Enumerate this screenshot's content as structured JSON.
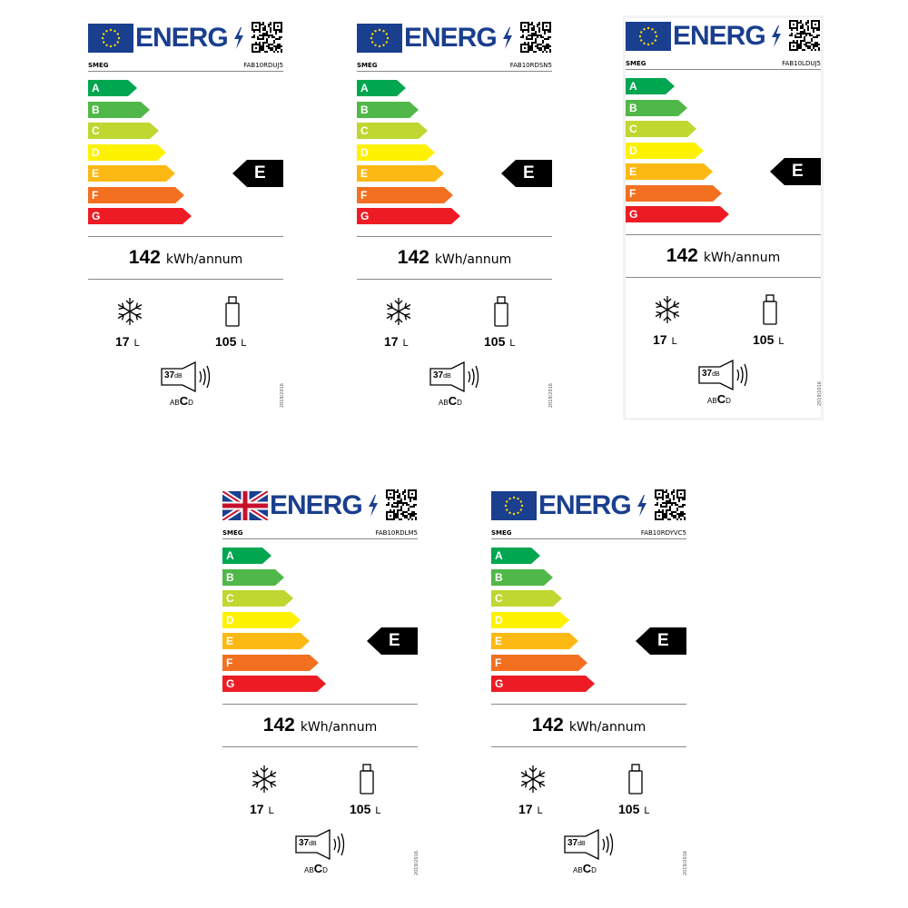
{
  "energy_word": "ENERG",
  "regulation": "2019/2016",
  "scale_classes": [
    {
      "letter": "A",
      "color": "#00a650"
    },
    {
      "letter": "B",
      "color": "#50b848"
    },
    {
      "letter": "C",
      "color": "#bfd730"
    },
    {
      "letter": "D",
      "color": "#fff200"
    },
    {
      "letter": "E",
      "color": "#fdb913"
    },
    {
      "letter": "F",
      "color": "#f37021"
    },
    {
      "letter": "G",
      "color": "#ed1c24"
    }
  ],
  "labels": [
    {
      "flag": "eu",
      "brand": "SMEG",
      "model": "FAB10RDUJ5",
      "energy_class": "E",
      "kwh": "142",
      "kwh_unit": "kWh/annum",
      "freezer_volume": "17",
      "fridge_volume": "105",
      "volume_unit": "L",
      "noise_db": "37",
      "noise_db_unit": "dB",
      "noise_classes": [
        "A",
        "B",
        "C",
        "D"
      ],
      "noise_class_selected": "C"
    },
    {
      "flag": "eu",
      "brand": "SMEG",
      "model": "FAB10RDSN5",
      "energy_class": "E",
      "kwh": "142",
      "kwh_unit": "kWh/annum",
      "freezer_volume": "17",
      "fridge_volume": "105",
      "volume_unit": "L",
      "noise_db": "37",
      "noise_db_unit": "dB",
      "noise_classes": [
        "A",
        "B",
        "C",
        "D"
      ],
      "noise_class_selected": "C"
    },
    {
      "flag": "eu",
      "brand": "SMEG",
      "model": "FAB10LDUJ5",
      "energy_class": "E",
      "kwh": "142",
      "kwh_unit": "kWh/annum",
      "freezer_volume": "17",
      "fridge_volume": "105",
      "volume_unit": "L",
      "noise_db": "37",
      "noise_db_unit": "dB",
      "noise_classes": [
        "A",
        "B",
        "C",
        "D"
      ],
      "noise_class_selected": "C"
    },
    {
      "flag": "uk",
      "brand": "SMEG",
      "model": "FAB10RDLM5",
      "energy_class": "E",
      "kwh": "142",
      "kwh_unit": "kWh/annum",
      "freezer_volume": "17",
      "fridge_volume": "105",
      "volume_unit": "L",
      "noise_db": "37",
      "noise_db_unit": "dB",
      "noise_classes": [
        "A",
        "B",
        "C",
        "D"
      ],
      "noise_class_selected": "C"
    },
    {
      "flag": "eu",
      "brand": "SMEG",
      "model": "FAB10RDYVC5",
      "energy_class": "E",
      "kwh": "142",
      "kwh_unit": "kWh/annum",
      "freezer_volume": "17",
      "fridge_volume": "105",
      "volume_unit": "L",
      "noise_db": "37",
      "noise_db_unit": "dB",
      "noise_classes": [
        "A",
        "B",
        "C",
        "D"
      ],
      "noise_class_selected": "C"
    }
  ]
}
